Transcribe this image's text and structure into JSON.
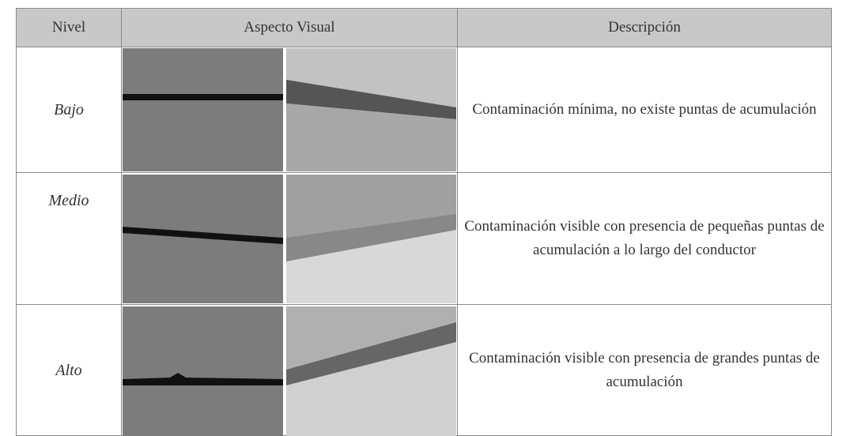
{
  "table": {
    "header": [
      "Nivel",
      "Aspecto Visual",
      "Descripción"
    ],
    "rows": [
      {
        "level": "Bajo",
        "description": "Contaminación mínima, no existe puntas de acumulación"
      },
      {
        "level": "Medio",
        "description": "Contaminación visible con presencia de pequeñas puntas de acumulación a lo largo del conductor"
      },
      {
        "level": "Alto",
        "description": "Contaminación visible con presencia de grandes puntas de acumulación"
      }
    ]
  }
}
